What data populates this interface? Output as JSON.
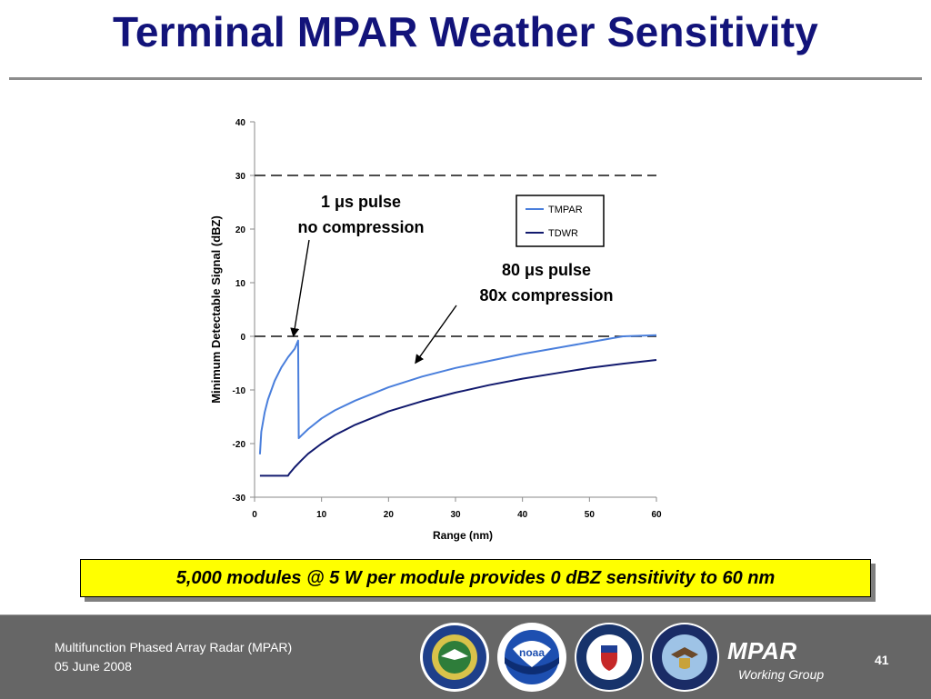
{
  "slide": {
    "title": "Terminal MPAR Weather Sensitivity",
    "callout": "5,000 modules @ 5 W per module provides 0 dBZ sensitivity to 60 nm"
  },
  "chart_data": {
    "type": "line",
    "xlabel": "Range (nm)",
    "ylabel": "Minimum Detectable Signal (dBZ)",
    "xlim": [
      0,
      60
    ],
    "ylim": [
      -30,
      40
    ],
    "xticks": [
      0,
      10,
      20,
      30,
      40,
      50,
      60
    ],
    "yticks": [
      -30,
      -20,
      -10,
      0,
      10,
      20,
      30,
      40
    ],
    "reference_lines_y": [
      30,
      0
    ],
    "legend_position": "top-right",
    "series": [
      {
        "name": "TMPAR",
        "color": "#4a7fdc",
        "x": [
          0.8,
          1,
          1.5,
          2,
          3,
          4,
          5,
          6,
          6.5,
          6.6,
          7,
          8,
          10,
          12,
          15,
          20,
          25,
          30,
          35,
          40,
          45,
          50,
          55,
          60
        ],
        "y": [
          -22,
          -17.8,
          -14.2,
          -11.8,
          -8.3,
          -5.8,
          -3.9,
          -2.3,
          -0.8,
          -19,
          -18.5,
          -17.3,
          -15.3,
          -13.8,
          -12.0,
          -9.5,
          -7.5,
          -5.9,
          -4.6,
          -3.3,
          -2.2,
          -1.1,
          0,
          0.2
        ]
      },
      {
        "name": "TDWR",
        "color": "#121a6e",
        "x": [
          0.8,
          5,
          5.2,
          6,
          7,
          8,
          10,
          12,
          15,
          20,
          25,
          30,
          35,
          40,
          45,
          50,
          55,
          60
        ],
        "y": [
          -26,
          -26,
          -25.6,
          -24.4,
          -23.1,
          -21.9,
          -20.0,
          -18.4,
          -16.5,
          -14.0,
          -12.1,
          -10.5,
          -9.1,
          -7.9,
          -6.9,
          -5.9,
          -5.1,
          -4.4
        ]
      }
    ],
    "annotations": [
      {
        "line1": "1 μs pulse",
        "line2": "no compression",
        "target": [
          5.8,
          0
        ]
      },
      {
        "line1": "80 μs pulse",
        "line2": "80x compression",
        "target": [
          24,
          -5
        ]
      }
    ]
  },
  "footer": {
    "title": "Multifunction Phased Array Radar (MPAR)",
    "date": "05 June 2008",
    "logo": "MPAR",
    "logo_sub": "Working Group",
    "page": "41",
    "seal_icons": [
      "faa-seal-icon",
      "noaa-seal-icon",
      "dhs-seal-icon",
      "dod-seal-icon"
    ]
  }
}
